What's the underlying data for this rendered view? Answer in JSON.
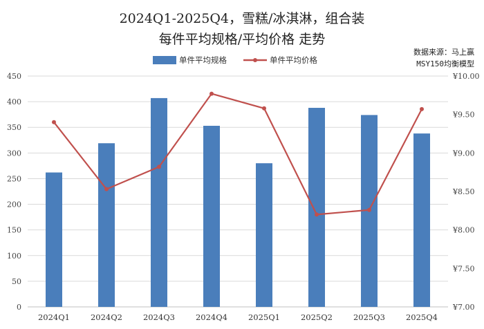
{
  "title_line1": "2024Q1-2025Q4，雪糕/冰淇淋，组合装",
  "title_line2": "每件平均规格/平均价格 走势",
  "source_line1": "数据来源：马上赢",
  "source_line2": "MSY150均衡模型",
  "colors": {
    "bar": "#4a7ebb",
    "line": "#c0504d",
    "grid": "#d9d9d9",
    "axis": "#bfbfbf"
  },
  "chart_data": {
    "type": "bar+line",
    "categories": [
      "2024Q1",
      "2024Q2",
      "2024Q3",
      "2024Q4",
      "2025Q1",
      "2025Q2",
      "2025Q3",
      "2025Q4"
    ],
    "series": [
      {
        "name": "单件平均规格",
        "type": "bar",
        "axis": "left",
        "values": [
          262,
          319,
          407,
          353,
          280,
          388,
          374,
          338
        ]
      },
      {
        "name": "单件平均价格",
        "type": "line",
        "axis": "right",
        "values": [
          9.4,
          8.53,
          8.82,
          9.77,
          9.58,
          8.2,
          8.26,
          9.57
        ]
      }
    ],
    "y_left": {
      "min": 0,
      "max": 450,
      "ticks": [
        0,
        50,
        100,
        150,
        200,
        250,
        300,
        350,
        400,
        450
      ]
    },
    "y_right": {
      "min": 7.0,
      "max": 10.0,
      "ticks": [
        7.0,
        7.5,
        8.0,
        8.5,
        9.0,
        9.5,
        10.0
      ],
      "tick_labels": [
        "¥7.00",
        "¥7.50",
        "¥8.00",
        "¥8.50",
        "¥9.00",
        "¥9.50",
        "¥10.00"
      ]
    },
    "grid": true,
    "legend": "top"
  }
}
